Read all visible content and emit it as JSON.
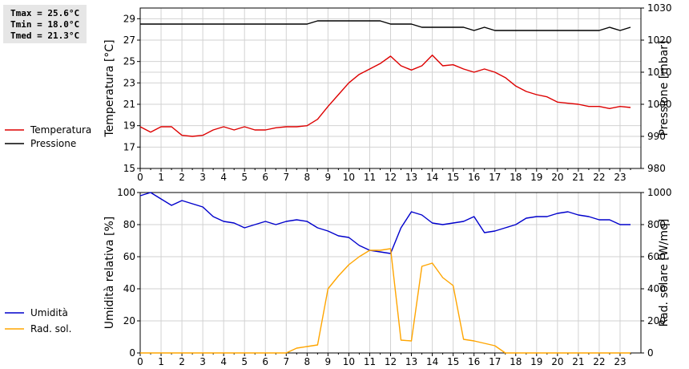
{
  "stats": {
    "tmax": "Tmax = 25.6°C",
    "tmin": "Tmin = 18.0°C",
    "tmed": "Tmed = 21.3°C"
  },
  "chart_data": [
    {
      "type": "line",
      "xlabel": "",
      "xlim": [
        0,
        24
      ],
      "x_ticks": [
        "0",
        "1",
        "2",
        "3",
        "4",
        "5",
        "6",
        "7",
        "8",
        "9",
        "10",
        "11",
        "12",
        "13",
        "14",
        "15",
        "16",
        "17",
        "18",
        "19",
        "20",
        "21",
        "22",
        "23"
      ],
      "ylabel_left": "Temperatura [°C]",
      "ylim_left": [
        15,
        30
      ],
      "yticks_left": [
        "15",
        "17",
        "19",
        "21",
        "23",
        "25",
        "27",
        "29"
      ],
      "ylabel_right": "Pressione [mbar]",
      "ylim_right": [
        980,
        1030
      ],
      "yticks_right": [
        "980",
        "990",
        "1000",
        "1010",
        "1020",
        "1030"
      ],
      "grid": true,
      "legend": "left",
      "series": [
        {
          "name": "Temperatura",
          "color": "#dd0000",
          "axis": "left",
          "x": [
            0,
            0.5,
            1,
            1.5,
            2,
            2.5,
            3,
            3.5,
            4,
            4.5,
            5,
            5.5,
            6,
            6.5,
            7,
            7.5,
            8,
            8.5,
            9,
            9.5,
            10,
            10.5,
            11,
            11.5,
            12,
            12.5,
            13,
            13.5,
            14,
            14.5,
            15,
            15.5,
            16,
            16.5,
            17,
            17.5,
            18,
            18.5,
            19,
            19.5,
            20,
            20.5,
            21,
            21.5,
            22,
            22.5,
            23,
            23.5
          ],
          "values": [
            18.9,
            18.4,
            18.9,
            18.9,
            18.1,
            18.0,
            18.1,
            18.6,
            18.9,
            18.6,
            18.9,
            18.6,
            18.6,
            18.8,
            18.9,
            18.9,
            19.0,
            19.6,
            20.8,
            21.9,
            23.0,
            23.8,
            24.3,
            24.8,
            25.5,
            24.6,
            24.2,
            24.6,
            25.6,
            24.6,
            24.7,
            24.3,
            24.0,
            24.3,
            24.0,
            23.5,
            22.7,
            22.2,
            21.9,
            21.7,
            21.2,
            21.1,
            21.0,
            20.8,
            20.8,
            20.6,
            20.8,
            20.7
          ]
        },
        {
          "name": "Pressione",
          "color": "#000000",
          "axis": "right",
          "x": [
            0,
            0.5,
            1,
            1.5,
            2,
            2.5,
            3,
            3.5,
            4,
            4.5,
            5,
            5.5,
            6,
            6.5,
            7,
            7.5,
            8,
            8.5,
            9,
            9.5,
            10,
            10.5,
            11,
            11.5,
            12,
            12.5,
            13,
            13.5,
            14,
            14.5,
            15,
            15.5,
            16,
            16.5,
            17,
            17.5,
            18,
            18.5,
            19,
            19.5,
            20,
            20.5,
            21,
            21.5,
            22,
            22.5,
            23,
            23.5
          ],
          "values": [
            1025,
            1025,
            1025,
            1025,
            1025,
            1025,
            1025,
            1025,
            1025,
            1025,
            1025,
            1025,
            1025,
            1025,
            1025,
            1025,
            1025,
            1026,
            1026,
            1026,
            1026,
            1026,
            1026,
            1026,
            1025,
            1025,
            1025,
            1024,
            1024,
            1024,
            1024,
            1024,
            1023,
            1024,
            1023,
            1023,
            1023,
            1023,
            1023,
            1023,
            1023,
            1023,
            1023,
            1023,
            1023,
            1024,
            1023,
            1024
          ]
        }
      ]
    },
    {
      "type": "line",
      "xlabel": "",
      "xlim": [
        0,
        24
      ],
      "x_ticks": [
        "0",
        "1",
        "2",
        "3",
        "4",
        "5",
        "6",
        "7",
        "8",
        "9",
        "10",
        "11",
        "12",
        "13",
        "14",
        "15",
        "16",
        "17",
        "18",
        "19",
        "20",
        "21",
        "22",
        "23"
      ],
      "ylabel_left": "Umidità relativa [%]",
      "ylim_left": [
        0,
        100
      ],
      "yticks_left": [
        "0",
        "20",
        "40",
        "60",
        "80",
        "100"
      ],
      "ylabel_right": "Rad. solare [W/mq]",
      "ylim_right": [
        0,
        1000
      ],
      "yticks_right": [
        "0",
        "200",
        "400",
        "600",
        "800",
        "1000"
      ],
      "grid": true,
      "legend": "left",
      "series": [
        {
          "name": "Umidità",
          "color": "#0000cc",
          "axis": "left",
          "x": [
            0,
            0.5,
            1,
            1.5,
            2,
            2.5,
            3,
            3.5,
            4,
            4.5,
            5,
            5.5,
            6,
            6.5,
            7,
            7.5,
            8,
            8.5,
            9,
            9.5,
            10,
            10.5,
            11,
            11.5,
            12,
            12.5,
            13,
            13.5,
            14,
            14.5,
            15,
            15.5,
            16,
            16.5,
            17,
            17.5,
            18,
            18.5,
            19,
            19.5,
            20,
            20.5,
            21,
            21.5,
            22,
            22.5,
            23,
            23.5
          ],
          "values": [
            98,
            100,
            96,
            92,
            95,
            93,
            91,
            85,
            82,
            81,
            78,
            80,
            82,
            80,
            82,
            83,
            82,
            78,
            76,
            73,
            72,
            67,
            64,
            63,
            62,
            78,
            88,
            86,
            81,
            80,
            81,
            82,
            85,
            75,
            76,
            78,
            80,
            84,
            85,
            85,
            87,
            88,
            86,
            85,
            83,
            83,
            80,
            80
          ]
        },
        {
          "name": "Rad. sol.",
          "color": "#ffa500",
          "axis": "right",
          "x": [
            0,
            0.5,
            1,
            1.5,
            2,
            2.5,
            3,
            3.5,
            4,
            4.5,
            5,
            5.5,
            6,
            6.5,
            7,
            7.5,
            8,
            8.5,
            9,
            9.5,
            10,
            10.5,
            11,
            11.5,
            12,
            12.5,
            13,
            13.5,
            14,
            14.5,
            15,
            15.5,
            16,
            16.5,
            17,
            17.5,
            18,
            18.5,
            19,
            19.5,
            20,
            20.5,
            21,
            21.5,
            22,
            22.5,
            23,
            23.5
          ],
          "values": [
            0,
            0,
            0,
            0,
            0,
            0,
            0,
            0,
            0,
            0,
            0,
            0,
            0,
            0,
            0,
            30,
            40,
            50,
            400,
            480,
            550,
            600,
            640,
            640,
            650,
            80,
            75,
            540,
            560,
            470,
            420,
            85,
            75,
            60,
            45,
            0,
            0,
            0,
            0,
            0,
            0,
            0,
            0,
            0,
            0,
            0,
            0,
            0
          ]
        }
      ]
    }
  ]
}
